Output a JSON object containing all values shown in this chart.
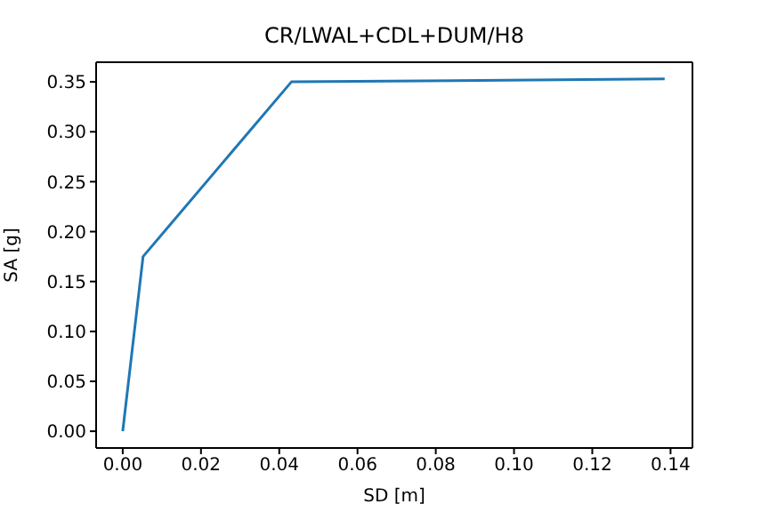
{
  "chart_data": {
    "type": "line",
    "title": "CR/LWAL+CDL+DUM/H8",
    "xlabel": "SD [m]",
    "ylabel": "SA [g]",
    "x": [
      0,
      0.0052,
      0.0431,
      0.1385
    ],
    "series": [
      {
        "color": "#1f77b4",
        "values": [
          0,
          0.175,
          0.35,
          0.353
        ]
      }
    ],
    "xlim": [
      -0.0068,
      0.1456
    ],
    "ylim": [
      -0.0168,
      0.3697
    ],
    "xticks": [
      {
        "value": 0,
        "label": "0.00"
      },
      {
        "value": 0.02,
        "label": "0.02"
      },
      {
        "value": 0.04,
        "label": "0.04"
      },
      {
        "value": 0.06,
        "label": "0.06"
      },
      {
        "value": 0.08,
        "label": "0.08"
      },
      {
        "value": 0.1,
        "label": "0.10"
      },
      {
        "value": 0.12,
        "label": "0.12"
      },
      {
        "value": 0.14,
        "label": "0.14"
      }
    ],
    "yticks": [
      {
        "value": 0,
        "label": "0.00"
      },
      {
        "value": 0.05,
        "label": "0.05"
      },
      {
        "value": 0.1,
        "label": "0.10"
      },
      {
        "value": 0.15,
        "label": "0.15"
      },
      {
        "value": 0.2,
        "label": "0.20"
      },
      {
        "value": 0.25,
        "label": "0.25"
      },
      {
        "value": 0.3,
        "label": "0.30"
      },
      {
        "value": 0.35,
        "label": "0.35"
      }
    ],
    "marker": "none",
    "line_style": "solid"
  }
}
